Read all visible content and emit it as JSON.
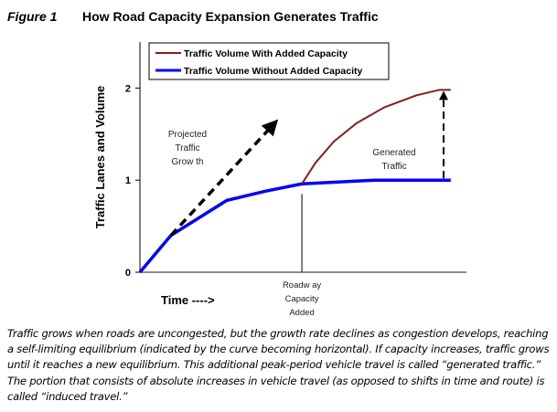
{
  "figure": {
    "label": "Figure 1",
    "title": "How Road Capacity Expansion Generates Traffic"
  },
  "caption": "Traffic grows when roads are uncongested, but the growth rate declines as congestion develops, reaching a self-limiting equilibrium (indicated by the curve becoming horizontal). If capacity increases, traffic grows until it reaches a new equilibrium. This additional peak-period vehicle travel is called “generated traffic.” The portion that consists of absolute increases in vehicle travel (as opposed to shifts in time and route) is called “induced travel.”",
  "chart_data": {
    "type": "line",
    "title": "How Road Capacity Expansion Generates Traffic",
    "xlabel": "Time ---->",
    "ylabel": "Traffic Lanes and Volume",
    "xlim": [
      0,
      10
    ],
    "ylim": [
      0,
      2.5
    ],
    "yticks": [
      "0",
      "1",
      "2"
    ],
    "ytick_values": [
      0,
      1,
      2
    ],
    "grid": false,
    "legend_position": "top-right",
    "series": [
      {
        "name": "Traffic Volume With Added Capacity",
        "color": "#8b1a1a",
        "x": [
          4.96,
          5.38,
          5.94,
          6.64,
          7.48,
          8.46,
          9.16,
          9.52
        ],
        "y": [
          0.96,
          1.19,
          1.42,
          1.62,
          1.79,
          1.92,
          1.98,
          1.98
        ]
      },
      {
        "name": "Traffic Volume Without Added Capacity",
        "color": "#0000ff",
        "x": [
          0,
          0.95,
          2.66,
          3.84,
          4.96,
          7.2,
          9.52
        ],
        "y": [
          0,
          0.4,
          0.78,
          0.88,
          0.96,
          1.0,
          1.0
        ]
      }
    ],
    "annotations": [
      {
        "id": "projected",
        "lines": [
          "Projected",
          "Traffic",
          "Grow th"
        ],
        "arrow_from": [
          0.95,
          0.4
        ],
        "arrow_to": [
          4.1,
          1.61
        ]
      },
      {
        "id": "generated",
        "lines": [
          "Generated",
          "Traffic"
        ],
        "arrow_from": [
          9.3,
          1.02
        ],
        "arrow_to": [
          9.3,
          1.97
        ]
      },
      {
        "id": "capacity",
        "lines": [
          "Roadw ay",
          "Capacity",
          "Added"
        ],
        "marker_x": 4.96,
        "marker_top_y": 0.85
      }
    ]
  }
}
